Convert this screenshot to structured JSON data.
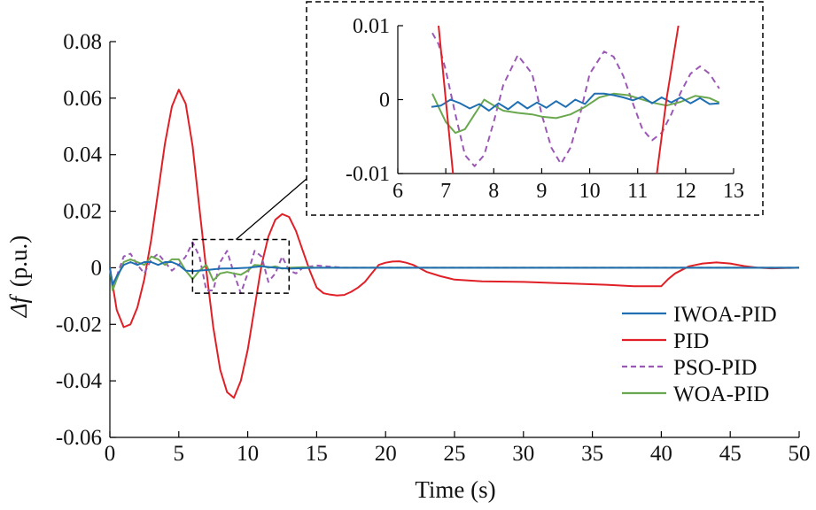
{
  "chart_data": {
    "type": "line",
    "xlabel": "Time (s)",
    "ylabel_symbol": "Δf",
    "ylabel_unit": "(p.u.)",
    "xlim": [
      0,
      50
    ],
    "ylim": [
      -0.06,
      0.08
    ],
    "xticks": [
      0,
      5,
      10,
      15,
      20,
      25,
      30,
      35,
      40,
      45,
      50
    ],
    "yticks": [
      0.08,
      0.06,
      0.04,
      0.02,
      0,
      -0.02,
      -0.04,
      -0.06
    ],
    "ytick_labels": [
      "0.08",
      "0.06",
      "0.04",
      "0.02",
      "0",
      "-0.02",
      "-0.04",
      "-0.06"
    ],
    "grid": false,
    "legend_position": "bottom-right",
    "colors": {
      "IWOA-PID": "#1f6fb2",
      "PID": "#e02027",
      "PSO-PID": "#9b59b6",
      "WOA-PID": "#6aa84f"
    },
    "series": [
      {
        "name": "IWOA-PID",
        "style": "solid",
        "x": [
          0,
          0.2,
          0.5,
          1,
          1.5,
          2,
          2.5,
          3,
          3.5,
          4,
          4.5,
          5,
          5.5,
          6,
          6.5,
          7,
          8,
          9,
          10,
          11,
          12,
          13,
          15,
          20,
          25,
          30,
          35,
          40,
          45,
          50
        ],
        "y": [
          0,
          -0.006,
          -0.003,
          0.001,
          0.002,
          0.001,
          0.002,
          0.002,
          0.001,
          0.002,
          0.002,
          0.001,
          -0.001,
          -0.0012,
          -0.001,
          -0.0008,
          -0.0003,
          -0.0002,
          0,
          0.0005,
          0,
          -0.0003,
          0,
          0,
          0,
          0,
          0,
          0,
          0,
          0
        ]
      },
      {
        "name": "PID",
        "style": "solid",
        "x": [
          0,
          0.5,
          1,
          1.5,
          2,
          2.5,
          3,
          3.5,
          4,
          4.5,
          5,
          5.5,
          6,
          6.5,
          7,
          7.5,
          8,
          8.5,
          9,
          9.5,
          10,
          10.5,
          11,
          11.5,
          12,
          12.5,
          13,
          13.5,
          14,
          14.5,
          15,
          15.5,
          16,
          16.5,
          17,
          17.5,
          18,
          18.5,
          19,
          19.5,
          20,
          20.5,
          21,
          21.5,
          22,
          22.5,
          23,
          24,
          25,
          27,
          30,
          33,
          36,
          38,
          40,
          40.5,
          41,
          42,
          43,
          44,
          45,
          46,
          47,
          48,
          50
        ],
        "y": [
          0,
          -0.015,
          -0.021,
          -0.02,
          -0.014,
          -0.004,
          0.01,
          0.027,
          0.044,
          0.057,
          0.063,
          0.058,
          0.043,
          0.021,
          -0.001,
          -0.021,
          -0.036,
          -0.044,
          -0.046,
          -0.04,
          -0.029,
          -0.014,
          0.001,
          0.011,
          0.017,
          0.019,
          0.018,
          0.013,
          0.006,
          -0.001,
          -0.007,
          -0.009,
          -0.0095,
          -0.0098,
          -0.0096,
          -0.0085,
          -0.007,
          -0.005,
          -0.002,
          0.001,
          0.0018,
          0.0022,
          0.0023,
          0.0018,
          0.001,
          -0.0002,
          -0.0015,
          -0.003,
          -0.0042,
          -0.0048,
          -0.005,
          -0.0055,
          -0.006,
          -0.0065,
          -0.0065,
          -0.004,
          -0.002,
          0.0005,
          0.0015,
          0.0019,
          0.0015,
          0.0006,
          0,
          -0.0002,
          0
        ]
      },
      {
        "name": "PSO-PID",
        "style": "dashed",
        "x": [
          0,
          0.2,
          0.5,
          1,
          1.5,
          2,
          2.5,
          3,
          3.5,
          4,
          4.5,
          5,
          5.5,
          6,
          6.5,
          7,
          7.5,
          8,
          8.5,
          9,
          9.5,
          10,
          10.5,
          11,
          11.5,
          12,
          12.5,
          13,
          13.5,
          14,
          15,
          17,
          20,
          25,
          30,
          35,
          40,
          45,
          50
        ],
        "y": [
          0,
          -0.006,
          -0.003,
          0.004,
          0.005,
          0.001,
          -0.002,
          0.003,
          0.005,
          0.002,
          -0.001,
          0.001,
          0.004,
          0.009,
          0.004,
          -0.008,
          -0.008,
          0.002,
          0.006,
          -0.002,
          -0.009,
          -0.002,
          0.006,
          0.004,
          -0.005,
          -0.002,
          0.004,
          -0.001,
          -0.002,
          0,
          0.0008,
          0,
          0,
          0,
          0,
          0,
          0,
          0,
          0
        ]
      },
      {
        "name": "WOA-PID",
        "style": "solid",
        "x": [
          0,
          0.2,
          0.5,
          1,
          1.5,
          2,
          2.5,
          3,
          3.5,
          4,
          4.5,
          5,
          5.5,
          6,
          6.5,
          7,
          7.5,
          8,
          8.5,
          9,
          9.5,
          10,
          10.5,
          11,
          11.5,
          12,
          12.5,
          13,
          14,
          15,
          20,
          25,
          30,
          35,
          40,
          45,
          50
        ],
        "y": [
          0,
          -0.008,
          -0.004,
          0.002,
          0.003,
          0.002,
          0.001,
          0.004,
          0.003,
          0.001,
          0.003,
          0.003,
          -0.001,
          -0.004,
          -0.001,
          0.001,
          -0.0045,
          -0.002,
          -0.0015,
          -0.002,
          -0.0025,
          -0.001,
          0.001,
          0.0008,
          0,
          0.0005,
          -0.0003,
          0,
          0.0002,
          0,
          0,
          0,
          0,
          0,
          0,
          0,
          0
        ]
      }
    ],
    "inset": {
      "xlim": [
        6,
        13
      ],
      "ylim": [
        -0.01,
        0.01
      ],
      "xticks": [
        6,
        7,
        8,
        9,
        10,
        11,
        12,
        13
      ],
      "yticks": [
        0.01,
        0,
        -0.01
      ],
      "ytick_labels": [
        "0.01",
        "0",
        "-0.01"
      ],
      "zoom_region": {
        "x": [
          6,
          13
        ],
        "y": [
          -0.009,
          0.01
        ]
      },
      "series": [
        {
          "name": "IWOA-PID",
          "x": [
            6.7,
            6.9,
            7.1,
            7.3,
            7.5,
            7.7,
            7.9,
            8.1,
            8.3,
            8.5,
            8.7,
            8.9,
            9.1,
            9.3,
            9.5,
            9.7,
            9.9,
            10.1,
            10.3,
            10.5,
            10.7,
            10.9,
            11.1,
            11.3,
            11.5,
            11.7,
            11.9,
            12.1,
            12.3,
            12.5,
            12.7
          ],
          "y": [
            -0.001,
            -0.0008,
            0,
            -0.0005,
            -0.0012,
            -0.0006,
            -0.0015,
            -0.0005,
            -0.0013,
            -0.0003,
            -0.0012,
            -0.0004,
            -0.0011,
            -0.0002,
            -0.001,
            0,
            -0.0006,
            0.0008,
            0.0008,
            0.0006,
            0.0003,
            -0.0001,
            0.0004,
            -0.0005,
            0.0003,
            -0.0004,
            0.0003,
            -0.0005,
            0.0002,
            -0.0006,
            -0.0005
          ]
        },
        {
          "name": "PID",
          "segments": [
            {
              "x": [
                6.85,
                7.0,
                7.15
              ],
              "y": [
                0.01,
                0.0,
                -0.01
              ]
            },
            {
              "x": [
                11.4,
                11.6,
                11.85
              ],
              "y": [
                -0.01,
                0.0,
                0.01
              ]
            }
          ]
        },
        {
          "name": "PSO-PID",
          "x": [
            6.72,
            6.85,
            7.0,
            7.2,
            7.4,
            7.6,
            7.8,
            8.0,
            8.2,
            8.5,
            8.8,
            9.0,
            9.2,
            9.4,
            9.6,
            9.8,
            10.0,
            10.3,
            10.5,
            10.7,
            10.9,
            11.1,
            11.3,
            11.5,
            11.7,
            11.9,
            12.1,
            12.3,
            12.5,
            12.7
          ],
          "y": [
            0.009,
            0.0075,
            0.004,
            -0.002,
            -0.0075,
            -0.009,
            -0.0075,
            -0.003,
            0.002,
            0.006,
            0.0035,
            -0.002,
            -0.0065,
            -0.0087,
            -0.0065,
            -0.002,
            0.0035,
            0.0065,
            0.0058,
            0.0032,
            -0.0005,
            -0.004,
            -0.0055,
            -0.0045,
            -0.002,
            0.001,
            0.0035,
            0.0045,
            0.0035,
            0.0015
          ]
        },
        {
          "name": "WOA-PID",
          "x": [
            6.72,
            6.85,
            7.0,
            7.2,
            7.4,
            7.6,
            7.8,
            8.0,
            8.2,
            8.5,
            8.8,
            9.0,
            9.3,
            9.6,
            9.9,
            10.2,
            10.5,
            10.8,
            11.0,
            11.3,
            11.6,
            11.9,
            12.2,
            12.5,
            12.7
          ],
          "y": [
            0.0008,
            -0.001,
            -0.003,
            -0.0045,
            -0.004,
            -0.002,
            0,
            -0.0008,
            -0.0015,
            -0.0018,
            -0.002,
            -0.0023,
            -0.0025,
            -0.002,
            -0.001,
            0.0003,
            0.0008,
            0.0006,
            0.0002,
            -0.0004,
            -0.0008,
            -0.0003,
            0.0005,
            0.0002,
            -0.0004
          ]
        }
      ]
    }
  }
}
